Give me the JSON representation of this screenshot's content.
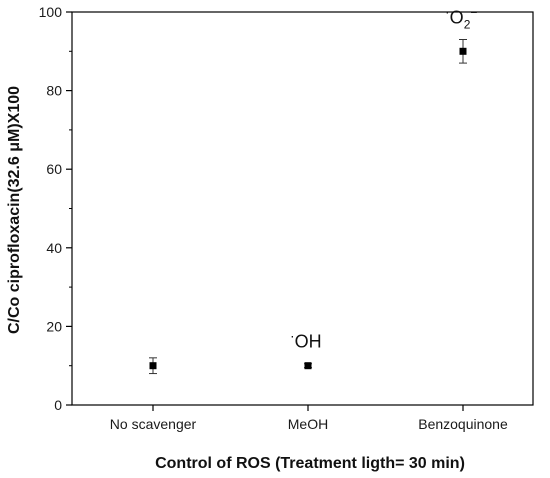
{
  "chart_data": {
    "type": "scatter",
    "categories": [
      "No scavenger",
      "MeOH",
      "Benzoquinone"
    ],
    "series": [
      {
        "values": [
          10,
          10,
          90
        ],
        "errors": [
          2,
          0.5,
          3
        ]
      }
    ],
    "xlabel": "Control of ROS (Treatment ligth= 30 min)",
    "ylabel": "C/Co ciprofloxacin(32.6 μM)X100",
    "ylim": [
      0,
      100
    ],
    "yticks": [
      0,
      20,
      40,
      60,
      80,
      100
    ],
    "grid": false,
    "annotations": [
      {
        "category": "MeOH",
        "dot": "·",
        "main": "OH",
        "sub": "",
        "sup": ""
      },
      {
        "category": "Benzoquinone",
        "dot": "·",
        "main": "O",
        "sub": "2",
        "sup": "−"
      }
    ],
    "colors": {
      "marker": "#000000",
      "axis": "#000000"
    }
  }
}
